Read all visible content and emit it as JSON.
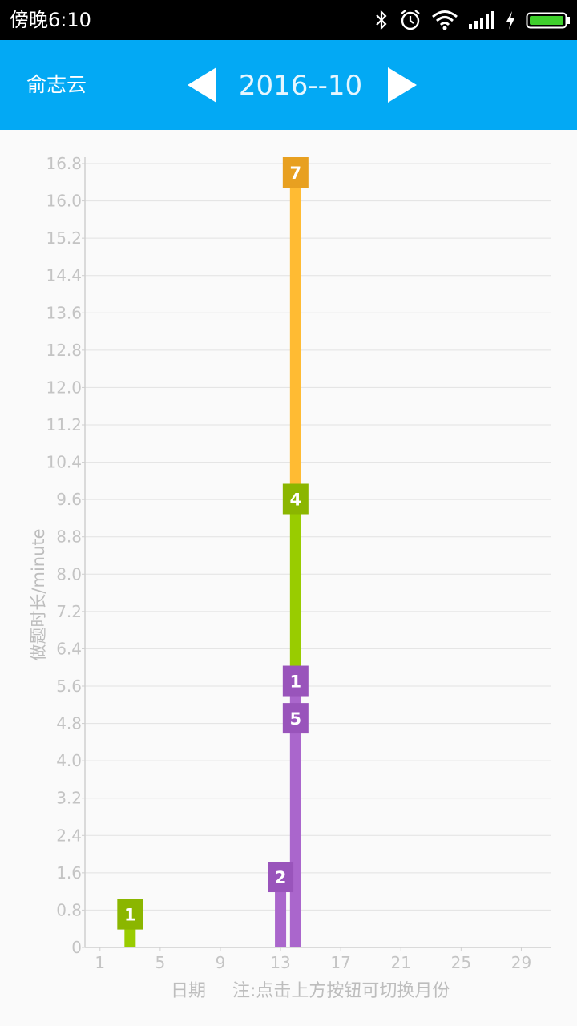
{
  "status_bar": {
    "time": "傍晚6:10",
    "icons": [
      "bluetooth-icon",
      "alarm-icon",
      "wifi-icon",
      "signal-icon",
      "charging-icon",
      "battery-icon"
    ]
  },
  "header": {
    "app_title": "俞志云",
    "month": "2016--10",
    "prev_icon": "triangle-left-icon",
    "next_icon": "triangle-right-icon",
    "background": "#03a9f4"
  },
  "chart_data": {
    "type": "bar",
    "stacked": true,
    "ylabel": "做题时长/minute",
    "xlabel": "日期",
    "note": "注:点击上方按钮可切换月份",
    "ylim": [
      0,
      16.8
    ],
    "y_ticks": [
      "0",
      "0.8",
      "1.6",
      "2.4",
      "3.2",
      "4.0",
      "4.8",
      "5.6",
      "6.4",
      "7.2",
      "8.0",
      "8.8",
      "9.6",
      "10.4",
      "11.2",
      "12.0",
      "12.8",
      "13.6",
      "14.4",
      "15.2",
      "16.0",
      "16.8"
    ],
    "x_ticks": [
      "1",
      "5",
      "9",
      "13",
      "17",
      "21",
      "25",
      "29"
    ],
    "xlim": [
      0,
      31
    ],
    "grid": true,
    "bars": [
      {
        "day": 3,
        "segments": [
          {
            "value": 0.9,
            "label": "1",
            "color": "#99cc00",
            "label_color": "#8bb600"
          }
        ]
      },
      {
        "day": 13,
        "segments": [
          {
            "value": 1.7,
            "label": "2",
            "color": "#aa66cc",
            "label_color": "#9954bb"
          }
        ]
      },
      {
        "day": 14,
        "segments": [
          {
            "value": 5.1,
            "label": "5",
            "color": "#aa66cc",
            "label_color": "#9954bb"
          },
          {
            "value": 0.8,
            "label": "1",
            "color": "#aa66cc",
            "label_color": "#9954bb"
          },
          {
            "value": 3.9,
            "label": "4",
            "color": "#99cc00",
            "label_color": "#8bb600"
          },
          {
            "value": 7.0,
            "label": "7",
            "color": "#ffbb33",
            "label_color": "#e8a020"
          }
        ]
      }
    ]
  }
}
